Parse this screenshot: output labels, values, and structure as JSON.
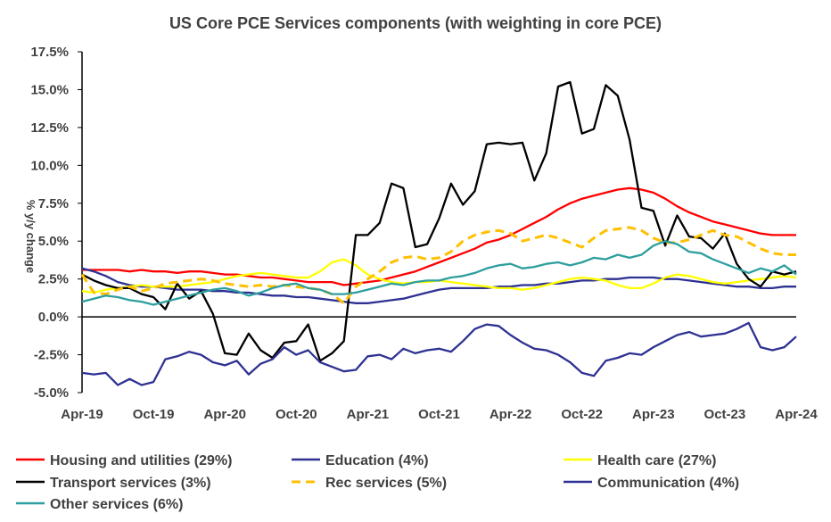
{
  "chart_data": {
    "type": "line",
    "title": "US Core PCE Services components (with weighting in core PCE)",
    "ylabel": "% y/y change",
    "xlabel": "",
    "ylim": [
      -5,
      17.5
    ],
    "y_ticks": [
      "17.5%",
      "15.0%",
      "12.5%",
      "10.0%",
      "7.5%",
      "5.0%",
      "2.5%",
      "0.0%",
      "-2.5%",
      "-5.0%"
    ],
    "y_tick_values": [
      17.5,
      15,
      12.5,
      10,
      7.5,
      5,
      2.5,
      0,
      -2.5,
      -5
    ],
    "x_ticks": [
      "Apr-19",
      "Oct-19",
      "Apr-20",
      "Oct-20",
      "Apr-21",
      "Oct-21",
      "Apr-22",
      "Oct-22",
      "Apr-23",
      "Oct-23",
      "Apr-24"
    ],
    "x": [
      "Apr-19",
      "May-19",
      "Jun-19",
      "Jul-19",
      "Aug-19",
      "Sep-19",
      "Oct-19",
      "Nov-19",
      "Dec-19",
      "Jan-20",
      "Feb-20",
      "Mar-20",
      "Apr-20",
      "May-20",
      "Jun-20",
      "Jul-20",
      "Aug-20",
      "Sep-20",
      "Oct-20",
      "Nov-20",
      "Dec-20",
      "Jan-21",
      "Feb-21",
      "Mar-21",
      "Apr-21",
      "May-21",
      "Jun-21",
      "Jul-21",
      "Aug-21",
      "Sep-21",
      "Oct-21",
      "Nov-21",
      "Dec-21",
      "Jan-22",
      "Feb-22",
      "Mar-22",
      "Apr-22",
      "May-22",
      "Jun-22",
      "Jul-22",
      "Aug-22",
      "Sep-22",
      "Oct-22",
      "Nov-22",
      "Dec-22",
      "Jan-23",
      "Feb-23",
      "Mar-23",
      "Apr-23",
      "May-23",
      "Jun-23",
      "Jul-23",
      "Aug-23",
      "Sep-23",
      "Oct-23",
      "Nov-23",
      "Dec-23",
      "Jan-24",
      "Feb-24",
      "Mar-24",
      "Apr-24"
    ],
    "grid": false,
    "legend": "bottom",
    "series": [
      {
        "name": "Housing and utilities (29%)",
        "color": "#ff0000",
        "dash": false,
        "values": [
          3.1,
          3.1,
          3.1,
          3.1,
          3.0,
          3.1,
          3.0,
          3.0,
          2.9,
          3.0,
          3.0,
          2.9,
          2.8,
          2.8,
          2.7,
          2.6,
          2.6,
          2.5,
          2.4,
          2.3,
          2.3,
          2.3,
          2.1,
          2.2,
          2.3,
          2.4,
          2.6,
          2.8,
          3.0,
          3.3,
          3.6,
          3.9,
          4.2,
          4.5,
          4.9,
          5.1,
          5.4,
          5.8,
          6.2,
          6.6,
          7.1,
          7.5,
          7.8,
          8.0,
          8.2,
          8.4,
          8.5,
          8.4,
          8.2,
          7.8,
          7.3,
          6.9,
          6.6,
          6.3,
          6.1,
          5.9,
          5.7,
          5.5,
          5.4,
          5.4,
          5.4
        ]
      },
      {
        "name": "Education (4%)",
        "color": "#2e3192",
        "dash": false,
        "values": [
          3.2,
          3.0,
          2.7,
          2.3,
          2.1,
          2.0,
          2.0,
          1.9,
          1.8,
          1.8,
          1.8,
          1.7,
          1.7,
          1.6,
          1.6,
          1.5,
          1.4,
          1.4,
          1.3,
          1.3,
          1.2,
          1.1,
          1.0,
          0.9,
          0.9,
          1.0,
          1.1,
          1.2,
          1.4,
          1.6,
          1.8,
          1.9,
          1.9,
          1.9,
          1.9,
          2.0,
          2.0,
          2.1,
          2.1,
          2.2,
          2.2,
          2.3,
          2.4,
          2.4,
          2.5,
          2.5,
          2.6,
          2.6,
          2.6,
          2.5,
          2.5,
          2.4,
          2.3,
          2.2,
          2.1,
          2.0,
          2.0,
          1.9,
          1.9,
          2.0,
          2.0
        ]
      },
      {
        "name": "Health care (27%)",
        "color": "#ffff00",
        "dash": false,
        "values": [
          1.7,
          1.6,
          1.8,
          1.9,
          2.0,
          2.1,
          2.0,
          2.0,
          2.0,
          2.1,
          2.2,
          2.3,
          2.5,
          2.7,
          2.8,
          2.9,
          2.8,
          2.7,
          2.6,
          2.6,
          3.0,
          3.6,
          3.8,
          3.4,
          2.8,
          2.5,
          2.3,
          2.2,
          2.3,
          2.3,
          2.4,
          2.3,
          2.2,
          2.1,
          2.0,
          1.9,
          1.9,
          1.8,
          1.9,
          2.1,
          2.3,
          2.5,
          2.6,
          2.5,
          2.4,
          2.1,
          1.9,
          1.9,
          2.2,
          2.6,
          2.8,
          2.7,
          2.5,
          2.3,
          2.2,
          2.3,
          2.4,
          2.5,
          2.6,
          2.7,
          2.6
        ]
      },
      {
        "name": "Transport services (3%)",
        "color": "#000000",
        "dash": false,
        "values": [
          2.8,
          2.4,
          2.1,
          1.9,
          1.9,
          1.5,
          1.3,
          0.5,
          2.2,
          1.2,
          1.7,
          0.2,
          -2.4,
          -2.5,
          -1.1,
          -2.2,
          -2.7,
          -1.7,
          -1.6,
          -0.5,
          -2.9,
          -2.4,
          -1.6,
          5.4,
          5.4,
          6.2,
          8.8,
          8.5,
          4.6,
          4.8,
          6.5,
          8.8,
          7.4,
          8.3,
          11.4,
          11.5,
          11.4,
          11.5,
          9.0,
          10.8,
          15.2,
          15.5,
          12.1,
          12.4,
          15.3,
          14.6,
          11.7,
          7.2,
          7.0,
          4.7,
          6.7,
          5.3,
          5.2,
          4.5,
          5.5,
          3.5,
          2.5,
          2.0,
          3.0,
          2.8,
          3.0
        ]
      },
      {
        "name": "Rec services (5%)",
        "color": "#ffc000",
        "dash": true,
        "values": [
          2.8,
          1.6,
          1.5,
          1.8,
          2.0,
          1.7,
          1.9,
          2.2,
          2.3,
          2.4,
          2.5,
          2.4,
          2.2,
          2.1,
          2.0,
          2.1,
          2.0,
          2.1,
          2.0,
          1.9,
          1.8,
          1.5,
          0.9,
          2.0,
          2.5,
          3.0,
          3.6,
          3.9,
          4.0,
          3.8,
          3.9,
          4.3,
          5.0,
          5.4,
          5.6,
          5.7,
          5.5,
          5.0,
          5.2,
          5.4,
          5.2,
          4.9,
          4.6,
          5.2,
          5.7,
          5.8,
          5.9,
          5.7,
          5.2,
          4.9,
          4.9,
          5.1,
          5.4,
          5.7,
          5.4,
          5.3,
          4.9,
          4.5,
          4.2,
          4.1,
          4.1
        ]
      },
      {
        "name": "Communication (4%)",
        "color": "#2e3192",
        "dash": false,
        "values": [
          -3.7,
          -3.8,
          -3.7,
          -4.5,
          -4.1,
          -4.5,
          -4.3,
          -2.8,
          -2.6,
          -2.3,
          -2.5,
          -3.0,
          -3.2,
          -2.9,
          -3.8,
          -3.1,
          -2.8,
          -2.0,
          -2.5,
          -2.2,
          -3.0,
          -3.3,
          -3.6,
          -3.5,
          -2.6,
          -2.5,
          -2.8,
          -2.1,
          -2.4,
          -2.2,
          -2.1,
          -2.3,
          -1.6,
          -0.8,
          -0.5,
          -0.6,
          -1.2,
          -1.7,
          -2.1,
          -2.2,
          -2.5,
          -3.0,
          -3.7,
          -3.9,
          -2.9,
          -2.7,
          -2.4,
          -2.5,
          -2.0,
          -1.6,
          -1.2,
          -1.0,
          -1.3,
          -1.2,
          -1.1,
          -0.8,
          -0.4,
          -2.0,
          -2.2,
          -2.0,
          -1.3
        ]
      },
      {
        "name": "Other services (6%)",
        "color": "#2e9e9e",
        "dash": false,
        "values": [
          1.0,
          1.2,
          1.4,
          1.3,
          1.1,
          1.0,
          0.8,
          1.0,
          1.2,
          1.4,
          1.6,
          1.8,
          1.9,
          1.7,
          1.4,
          1.6,
          1.9,
          2.1,
          2.2,
          1.9,
          1.8,
          1.5,
          1.5,
          1.6,
          1.8,
          2.0,
          2.2,
          2.1,
          2.3,
          2.4,
          2.4,
          2.6,
          2.7,
          2.9,
          3.2,
          3.4,
          3.5,
          3.2,
          3.3,
          3.5,
          3.6,
          3.4,
          3.6,
          3.9,
          3.8,
          4.1,
          3.9,
          4.1,
          4.7,
          5.0,
          4.8,
          4.3,
          4.2,
          3.8,
          3.5,
          3.2,
          2.9,
          3.2,
          3.0,
          3.4,
          2.8
        ]
      }
    ]
  }
}
